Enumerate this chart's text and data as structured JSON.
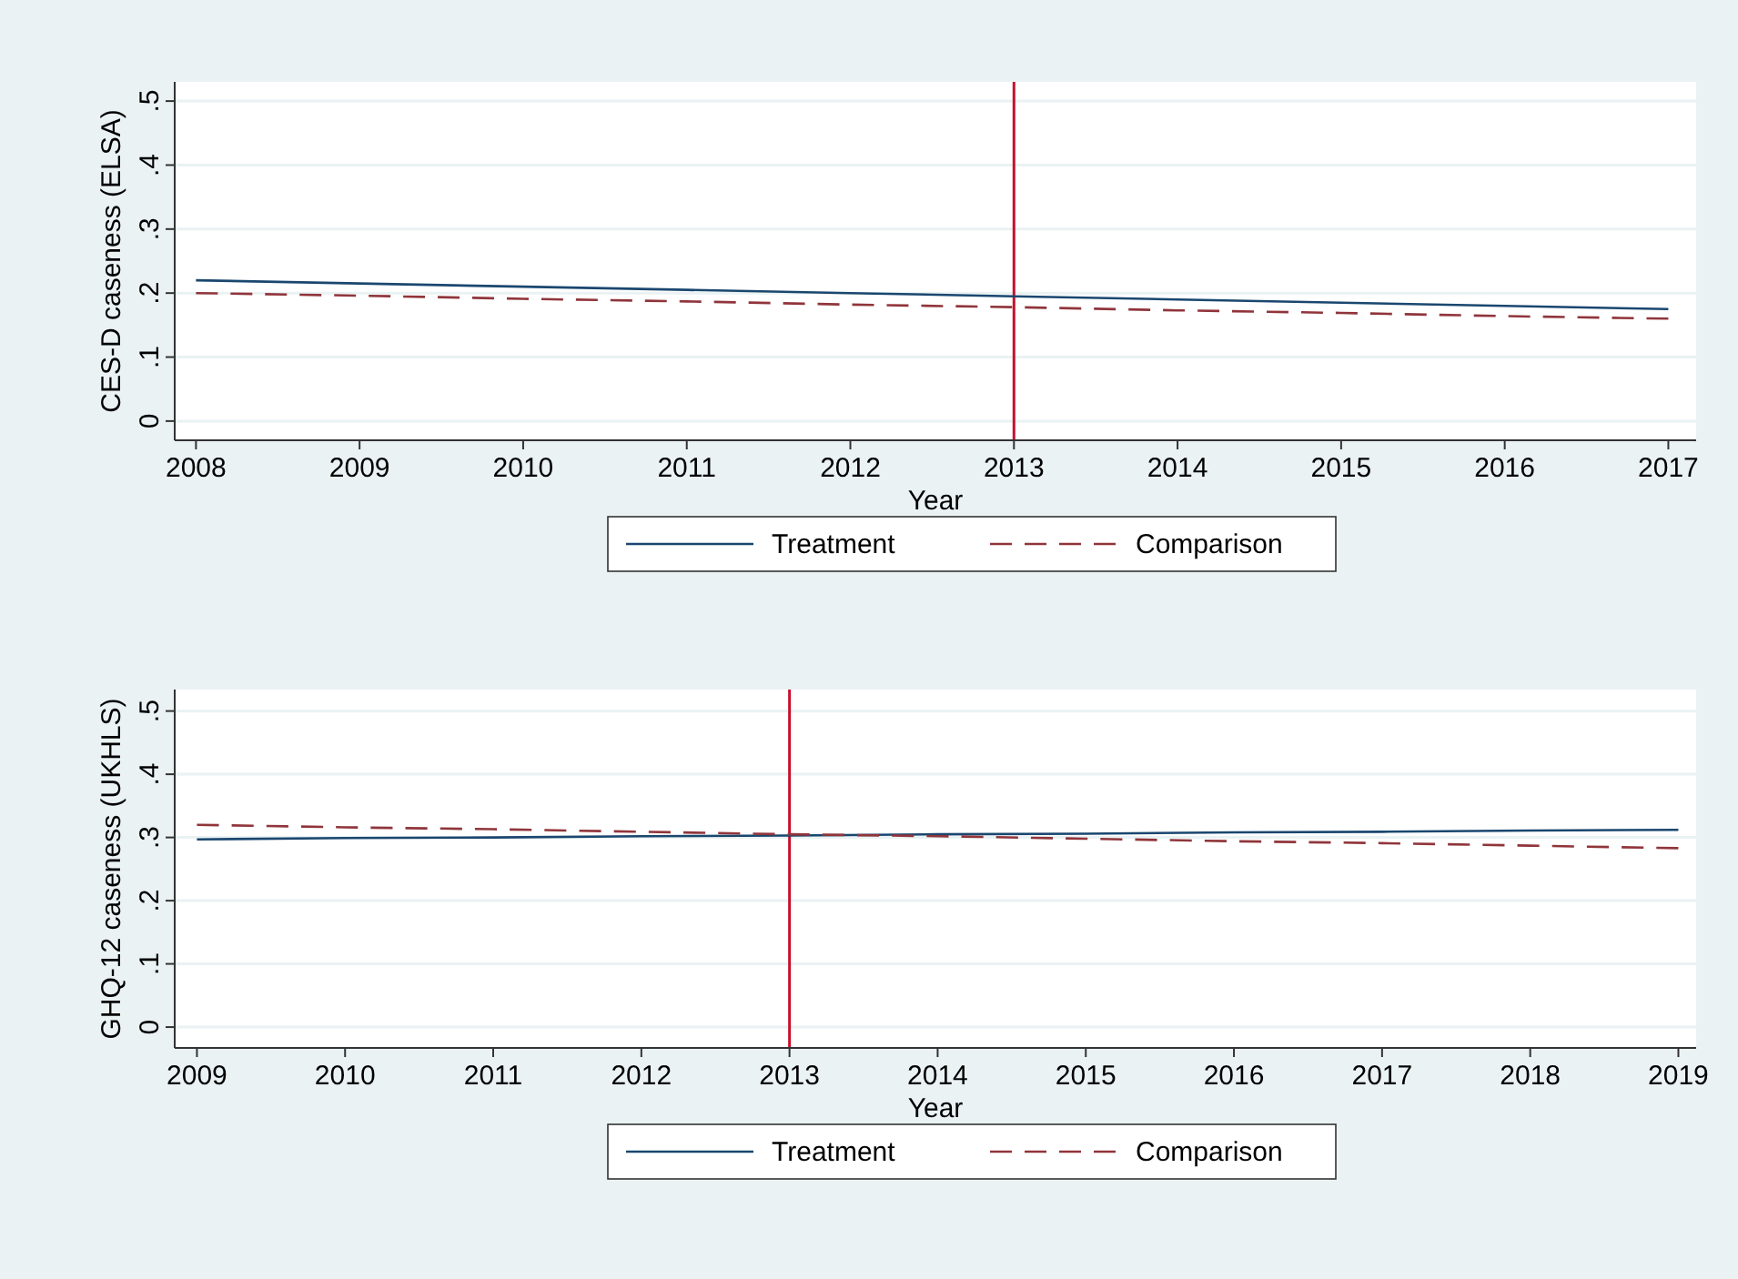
{
  "chart_data": [
    {
      "type": "line",
      "xlabel": "Year",
      "ylabel": "CES-D caseness (ELSA)",
      "x": [
        2008,
        2009,
        2010,
        2011,
        2012,
        2013,
        2014,
        2015,
        2016,
        2017
      ],
      "series": [
        {
          "name": "Treatment",
          "color": "#1a476f",
          "line_style": "solid",
          "values": [
            0.22,
            0.215,
            0.21,
            0.205,
            0.2,
            0.195,
            0.19,
            0.185,
            0.18,
            0.175
          ]
        },
        {
          "name": "Comparison",
          "color": "#90353b",
          "line_style": "dashed",
          "values": [
            0.2,
            0.196,
            0.191,
            0.187,
            0.182,
            0.178,
            0.173,
            0.169,
            0.164,
            0.16
          ]
        }
      ],
      "xlim": [
        2007.87,
        2017.17
      ],
      "xticks": [
        2008,
        2009,
        2010,
        2011,
        2012,
        2013,
        2014,
        2015,
        2016,
        2017
      ],
      "ylim": [
        -0.03,
        0.53
      ],
      "yticks": [
        0,
        {
          "value": 0.1,
          "label": ".1"
        },
        {
          "value": 0.2,
          "label": ".2"
        },
        {
          "value": 0.3,
          "label": ".3"
        },
        {
          "value": 0.4,
          "label": ".4"
        },
        {
          "value": 0.5,
          "label": ".5"
        }
      ],
      "ref_lines": [
        {
          "axis": "x",
          "value": 2013,
          "color": "#c8102e"
        }
      ],
      "grid": "y",
      "legend": "bottom",
      "marker": "none"
    },
    {
      "type": "line",
      "xlabel": "Year",
      "ylabel": "GHQ-12 caseness (UKHLS)",
      "x": [
        2009,
        2010,
        2011,
        2012,
        2013,
        2014,
        2015,
        2016,
        2017,
        2018,
        2019
      ],
      "series": [
        {
          "name": "Treatment",
          "color": "#1a476f",
          "line_style": "solid",
          "values": [
            0.297,
            0.299,
            0.3,
            0.302,
            0.303,
            0.305,
            0.306,
            0.308,
            0.309,
            0.311,
            0.312
          ]
        },
        {
          "name": "Comparison",
          "color": "#90353b",
          "line_style": "dashed",
          "values": [
            0.32,
            0.316,
            0.313,
            0.309,
            0.305,
            0.302,
            0.298,
            0.294,
            0.291,
            0.287,
            0.283
          ]
        }
      ],
      "xlim": [
        2008.85,
        2019.12
      ],
      "xticks": [
        2009,
        2010,
        2011,
        2012,
        2013,
        2014,
        2015,
        2016,
        2017,
        2018,
        2019
      ],
      "ylim": [
        -0.033,
        0.534
      ],
      "yticks": [
        0,
        {
          "value": 0.1,
          "label": ".1"
        },
        {
          "value": 0.2,
          "label": ".2"
        },
        {
          "value": 0.3,
          "label": ".3"
        },
        {
          "value": 0.4,
          "label": ".4"
        },
        {
          "value": 0.5,
          "label": ".5"
        }
      ],
      "ref_lines": [
        {
          "axis": "x",
          "value": 2013,
          "color": "#c8102e"
        }
      ],
      "grid": "y",
      "legend": "bottom",
      "marker": "none"
    }
  ]
}
